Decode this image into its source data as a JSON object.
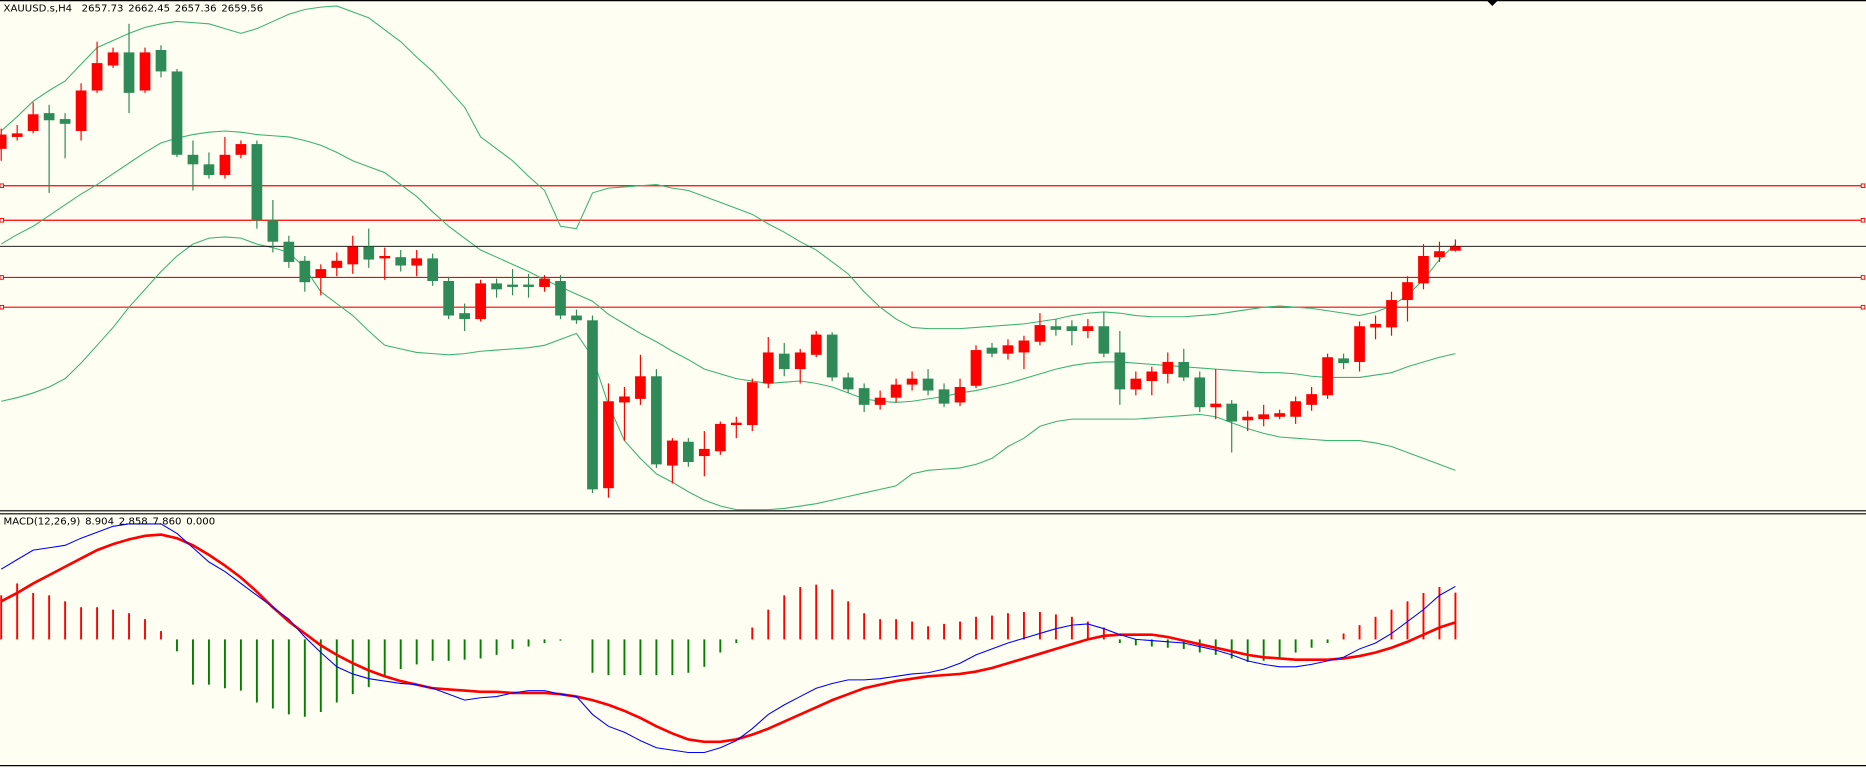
{
  "chart_data": [
    {
      "type": "candlestick",
      "title": "XAUUSD.s,H4",
      "open": [
        2700.5,
        2705.5,
        2708,
        2715.5,
        2713,
        2708,
        2725,
        2735.5,
        2741,
        2725,
        2742,
        2733,
        2698,
        2694,
        2689.5,
        2698,
        2702.5,
        2670.5,
        2661.5,
        2653.5,
        2646.5,
        2650.5,
        2652,
        2659.5,
        2654.5,
        2655,
        2651.5,
        2654.5,
        2645,
        2631.5,
        2629,
        2644,
        2643.5,
        2643.5,
        2642.5,
        2645,
        2630.5,
        2628.5,
        2558,
        2594,
        2595.5,
        2605,
        2567.5,
        2577.5,
        2571.5,
        2573.5,
        2584.5,
        2584.5,
        2602,
        2614.5,
        2608,
        2614,
        2622.5,
        2604.5,
        2600,
        2593,
        2596,
        2601.5,
        2604,
        2599.5,
        2594,
        2601,
        2617,
        2614.5,
        2615,
        2619.5,
        2626,
        2626,
        2624,
        2626,
        2615,
        2599.5,
        2603,
        2606,
        2611,
        2604.5,
        2592,
        2593.5,
        2586.5,
        2587,
        2588,
        2588,
        2593,
        2597,
        2612.5,
        2611,
        2625.5,
        2625.5,
        2637,
        2644,
        2655,
        2657.73
      ],
      "high": [
        2709,
        2710.5,
        2720,
        2719,
        2715.5,
        2728,
        2745.5,
        2743,
        2753,
        2743,
        2744,
        2734,
        2704,
        2699,
        2705.5,
        2704,
        2704,
        2679,
        2664,
        2655.5,
        2652,
        2657,
        2664,
        2667,
        2659,
        2658,
        2658,
        2656.5,
        2646.5,
        2635.5,
        2645.5,
        2646,
        2650,
        2648,
        2647.5,
        2647.5,
        2633,
        2630.5,
        2602,
        2600.5,
        2614,
        2608,
        2579,
        2579,
        2582,
        2586,
        2588,
        2604,
        2621.5,
        2619,
        2616.5,
        2624,
        2623.5,
        2606.5,
        2602,
        2599,
        2604,
        2607,
        2608,
        2602,
        2604,
        2618,
        2619,
        2620.5,
        2622,
        2631.5,
        2629,
        2628.5,
        2629,
        2632,
        2624,
        2607,
        2609,
        2615,
        2616.5,
        2607,
        2608,
        2595,
        2590.5,
        2593,
        2591,
        2596.5,
        2600.5,
        2614.5,
        2614.5,
        2628,
        2630.5,
        2640.5,
        2647,
        2660.5,
        2661.5,
        2662.45
      ],
      "low": [
        2695.5,
        2704,
        2707,
        2682,
        2696.5,
        2704,
        2724,
        2734.5,
        2715.5,
        2724,
        2730.5,
        2697,
        2683,
        2688,
        2688,
        2696.5,
        2667,
        2657,
        2650.5,
        2640.5,
        2639,
        2647,
        2648,
        2650.5,
        2645.5,
        2649,
        2647,
        2643,
        2629,
        2624,
        2628,
        2638,
        2639,
        2638,
        2640.5,
        2629,
        2627,
        2556,
        2554,
        2578,
        2593,
        2566.5,
        2560,
        2567,
        2563,
        2572,
        2579,
        2582,
        2600,
        2605,
        2602,
        2613,
        2603,
        2598,
        2590,
        2591,
        2594,
        2599,
        2597,
        2592,
        2592.5,
        2600,
        2613,
        2612,
        2608,
        2618,
        2622,
        2618,
        2621,
        2613,
        2593,
        2597,
        2597,
        2602,
        2603,
        2590,
        2587,
        2573,
        2582,
        2584,
        2587,
        2585,
        2590.5,
        2595.5,
        2608,
        2607,
        2620.5,
        2622,
        2628,
        2641.5,
        2653,
        2657.36
      ],
      "close": [
        2706.5,
        2707,
        2715,
        2712.5,
        2711,
        2725,
        2736.5,
        2741,
        2724,
        2741,
        2733,
        2698,
        2694,
        2689.5,
        2698,
        2702.5,
        2670.5,
        2661.5,
        2653,
        2644.5,
        2650,
        2653.5,
        2659.5,
        2654,
        2655.5,
        2651.5,
        2654.5,
        2645,
        2630.5,
        2629,
        2644,
        2641.5,
        2642.5,
        2642.5,
        2646,
        2630.5,
        2628.5,
        2557.5,
        2594.5,
        2596.5,
        2605,
        2568,
        2578,
        2569,
        2574.5,
        2585,
        2585.5,
        2602.5,
        2615,
        2608,
        2615,
        2622.5,
        2604.5,
        2599.5,
        2593,
        2596,
        2601.5,
        2604,
        2599,
        2593.5,
        2600.5,
        2616,
        2614.5,
        2618,
        2620,
        2626.5,
        2624.5,
        2624,
        2626,
        2614.5,
        2599.5,
        2604,
        2607,
        2611,
        2604.5,
        2592,
        2593.5,
        2586,
        2588,
        2589,
        2589.5,
        2594.5,
        2597.5,
        2613,
        2610.5,
        2626,
        2627,
        2637,
        2644.5,
        2655.5,
        2657.5,
        2659.56
      ],
      "up_color": "#ff0000",
      "down_color": "#2e8b57",
      "ylim": [
        2549,
        2763
      ],
      "bands": {
        "color": "#3cb371",
        "upper": [
          2708,
          2714,
          2720.5,
          2725,
          2729,
          2736,
          2743,
          2746,
          2749,
          2751.5,
          2753,
          2754,
          2753.5,
          2753,
          2751,
          2749,
          2751,
          2754,
          2757,
          2759,
          2760,
          2760.5,
          2758,
          2755.5,
          2750.5,
          2745.5,
          2739,
          2733,
          2725.5,
          2718,
          2705.5,
          2700.5,
          2695.5,
          2689,
          2683,
          2668,
          2667,
          2682,
          2684,
          2684.5,
          2685,
          2685.5,
          2684,
          2683,
          2680.5,
          2678,
          2675.5,
          2673,
          2669,
          2665.5,
          2661.5,
          2658,
          2653,
          2648,
          2640.5,
          2634,
          2629,
          2625.5,
          2625,
          2625,
          2625,
          2625.5,
          2626,
          2626.5,
          2627,
          2628,
          2629,
          2630.5,
          2631.5,
          2632,
          2631.5,
          2630.5,
          2630,
          2630,
          2630,
          2630.5,
          2631,
          2632,
          2633,
          2634,
          2634.5,
          2634,
          2633.5,
          2632.5,
          2631.5,
          2630.5,
          2632,
          2634.5,
          2639,
          2645.5,
          2654,
          2660.5
        ],
        "middle": [
          2660.5,
          2664.5,
          2668,
          2672.5,
          2677,
          2681.5,
          2685.5,
          2690,
          2694.5,
          2699,
          2703,
          2705,
          2706.5,
          2707.5,
          2708,
          2707.5,
          2706.5,
          2706,
          2705.5,
          2704,
          2702,
          2699,
          2695.5,
          2693,
          2690.5,
          2685.5,
          2680.5,
          2674,
          2668,
          2663,
          2658,
          2655,
          2652,
          2649,
          2645.5,
          2642.5,
          2639.5,
          2636.5,
          2631,
          2627,
          2623,
          2619.5,
          2615.5,
          2612,
          2608,
          2606,
          2604,
          2603,
          2602,
          2602.5,
          2603,
          2602,
          2600.5,
          2598,
          2595.5,
          2594.5,
          2594,
          2594.5,
          2595.5,
          2596.5,
          2598,
          2599,
          2600.5,
          2602,
          2604,
          2606,
          2608,
          2609.5,
          2610.5,
          2611,
          2611,
          2610.5,
          2610,
          2609.5,
          2609,
          2608.5,
          2608,
          2607.5,
          2607,
          2606.5,
          2606.5,
          2606,
          2605,
          2604.5,
          2604.5,
          2604.5,
          2605.5,
          2606.5,
          2609,
          2611,
          2613,
          2614.5
        ],
        "lower": [
          2594.5,
          2596,
          2598,
          2600.5,
          2604,
          2610.5,
          2618,
          2625.5,
          2634,
          2641.5,
          2649,
          2655.5,
          2660.5,
          2663,
          2663.5,
          2663,
          2660.5,
          2659,
          2657,
          2650.5,
          2640.5,
          2635.5,
          2630.5,
          2624,
          2618,
          2616.5,
          2615,
          2614.5,
          2614,
          2614.5,
          2615.5,
          2616,
          2616.5,
          2617,
          2618,
          2620.5,
          2623,
          2613,
          2593,
          2578,
          2570.5,
          2564,
          2560.5,
          2556.5,
          2553,
          2550.5,
          2549,
          2549,
          2549,
          2549.5,
          2550.5,
          2551.5,
          2553,
          2554.5,
          2556,
          2557.5,
          2559,
          2564,
          2565.5,
          2566,
          2566.5,
          2568,
          2570.5,
          2575.5,
          2579,
          2584,
          2586,
          2587,
          2587,
          2587,
          2587,
          2587,
          2587.5,
          2588,
          2588.5,
          2589,
          2588,
          2585.5,
          2583,
          2581,
          2579.5,
          2579,
          2578.5,
          2578,
          2578,
          2578,
          2577,
          2575.5,
          2573,
          2570.5,
          2568,
          2565.5
        ]
      },
      "levels": {
        "color": "#ff0000",
        "values": [
          2685,
          2670.5,
          2646.5,
          2634
        ]
      },
      "bid_color": "#000000"
    },
    {
      "type": "macd",
      "title": "MACD(12,26,9)",
      "readout": [
        "8.904",
        "2.858",
        "7.860",
        "0.000"
      ],
      "ylim": [
        -21,
        21
      ],
      "histogram": {
        "up_color": "#ff0000",
        "down_color": "#008000",
        "values": [
          7.4,
          9.4,
          7.8,
          7.4,
          6.4,
          5.4,
          5.4,
          5,
          4.4,
          3.4,
          1.4,
          -2,
          -7.6,
          -7.6,
          -8.2,
          -8.6,
          -10.6,
          -11.6,
          -12.6,
          -13,
          -12.2,
          -10.6,
          -9.2,
          -8,
          -6.2,
          -5,
          -4.2,
          -3.6,
          -3.6,
          -3.4,
          -3.2,
          -2.6,
          -1.6,
          -1.2,
          -0.6,
          -0.2,
          0,
          -5.6,
          -6,
          -6,
          -6,
          -6,
          -6,
          -5.6,
          -4.6,
          -2.2,
          -0.6,
          2,
          5,
          7.4,
          8.8,
          9.2,
          8.4,
          6.4,
          4.4,
          3.4,
          3.4,
          3,
          2.2,
          2.6,
          3,
          3.8,
          4,
          4.4,
          4.6,
          4.6,
          4.2,
          3.8,
          3,
          2,
          -0.6,
          -1,
          -1.2,
          -1.4,
          -1.6,
          -2.2,
          -2.6,
          -3.2,
          -3.8,
          -3.6,
          -3,
          -2.2,
          -1.4,
          -0.6,
          1,
          2.4,
          3.8,
          5,
          6.4,
          7.8,
          8.8,
          7.86
        ]
      },
      "macd": {
        "color": "#0000ff",
        "values": [
          11.8,
          13.4,
          15,
          15.4,
          15.8,
          17,
          18,
          19,
          19.4,
          19.4,
          19.4,
          17.8,
          15.4,
          13,
          11.4,
          9.4,
          7.4,
          5.4,
          3.4,
          0.4,
          -2.2,
          -4.6,
          -5.8,
          -6.6,
          -7,
          -7.4,
          -7.6,
          -8.2,
          -9.2,
          -10.2,
          -9.8,
          -9.6,
          -9,
          -8.6,
          -8.6,
          -9.2,
          -9.6,
          -12.6,
          -14.6,
          -15.6,
          -17,
          -18.2,
          -18.6,
          -19,
          -19,
          -18.2,
          -17,
          -15,
          -12.6,
          -11,
          -9.6,
          -8.2,
          -7.4,
          -6.8,
          -6.8,
          -6.6,
          -6.2,
          -5.8,
          -5.6,
          -5,
          -4,
          -2.6,
          -1.6,
          -0.6,
          0.2,
          1,
          1.8,
          2.4,
          2.6,
          1.8,
          0.8,
          0,
          -0.2,
          -0.4,
          -0.6,
          -1.2,
          -1.8,
          -2.6,
          -3.6,
          -4.2,
          -4.6,
          -4.6,
          -4.2,
          -3.6,
          -3,
          -1.6,
          -0.6,
          1,
          3,
          5,
          7.4,
          8.904
        ]
      },
      "signal": {
        "color": "#ff0000",
        "values": [
          6.4,
          7.8,
          9.4,
          10.8,
          12.2,
          13.6,
          15,
          16,
          16.8,
          17.4,
          17.6,
          17,
          15.8,
          14.2,
          12.4,
          10.4,
          8,
          5.4,
          3,
          1,
          -1,
          -2.6,
          -4,
          -5.2,
          -6.2,
          -7,
          -7.6,
          -8.2,
          -8.4,
          -8.6,
          -8.8,
          -8.8,
          -9,
          -9,
          -9,
          -9.2,
          -9.6,
          -10.2,
          -11,
          -12,
          -13.2,
          -14.6,
          -15.8,
          -16.8,
          -17.2,
          -17.2,
          -16.8,
          -16,
          -15,
          -13.8,
          -12.6,
          -11.4,
          -10.2,
          -9.2,
          -8.2,
          -7.6,
          -7,
          -6.6,
          -6.2,
          -6,
          -5.8,
          -5.4,
          -4.8,
          -4,
          -3.2,
          -2.4,
          -1.6,
          -0.8,
          0,
          0.6,
          0.8,
          0.8,
          0.8,
          0.4,
          -0.2,
          -0.8,
          -1.4,
          -2,
          -2.6,
          -3,
          -3.2,
          -3.4,
          -3.4,
          -3.4,
          -3.2,
          -2.8,
          -2.2,
          -1.4,
          -0.4,
          0.8,
          2,
          2.858
        ]
      }
    }
  ]
}
